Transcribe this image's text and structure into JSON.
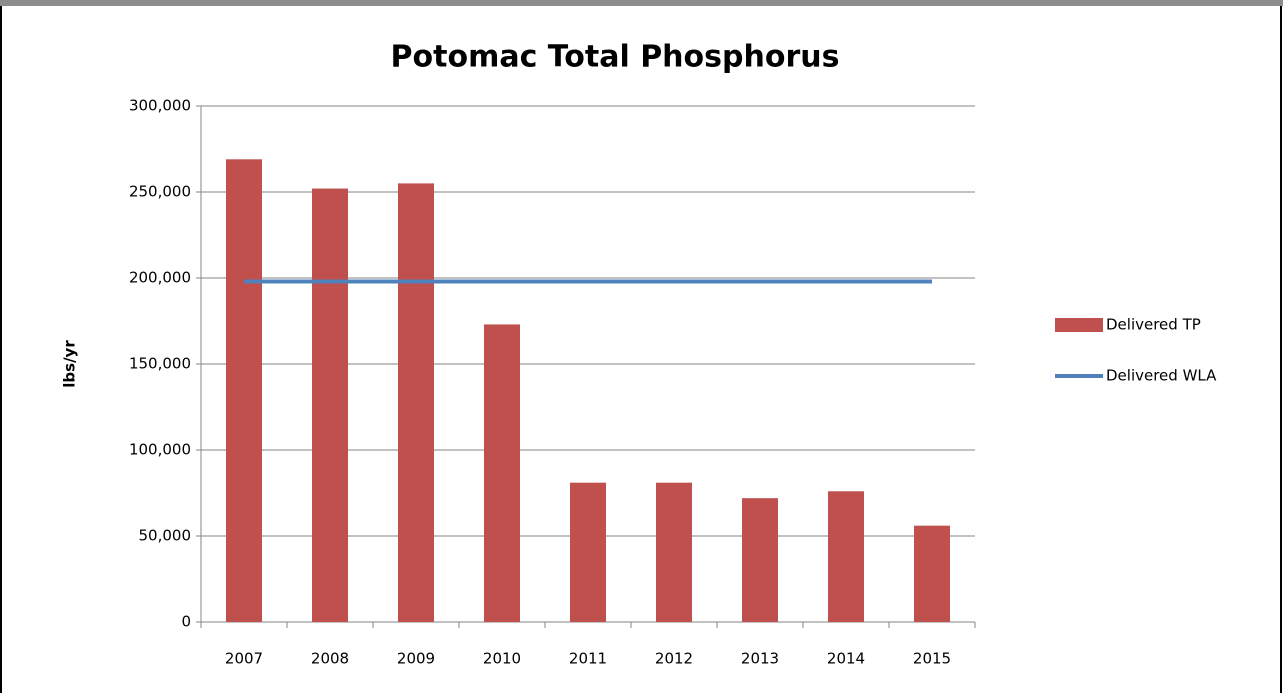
{
  "chart_data": {
    "type": "bar",
    "title": "Potomac Total Phosphorus",
    "y_label": "lbs/yr",
    "categories": [
      "2007",
      "2008",
      "2009",
      "2010",
      "2011",
      "2012",
      "2013",
      "2014",
      "2015"
    ],
    "series": [
      {
        "name": "Delivered TP",
        "type": "bar",
        "color": "#c0504d",
        "values": [
          269000,
          252000,
          255000,
          173000,
          81000,
          81000,
          72000,
          76000,
          56000
        ]
      },
      {
        "name": "Delivered WLA",
        "type": "line",
        "color": "#4f81bd",
        "values": [
          198000,
          198000,
          198000,
          198000,
          198000,
          198000,
          198000,
          198000,
          198000
        ]
      }
    ],
    "ylim": [
      0,
      300000
    ],
    "yticks": [
      0,
      {
        "value": 50000,
        "label": "50,000"
      },
      {
        "value": 100000,
        "label": "100,000"
      },
      {
        "value": 150000,
        "label": "150,000"
      },
      {
        "value": 200000,
        "label": "200,000"
      },
      {
        "value": 250000,
        "label": "250,000"
      },
      {
        "value": 300000,
        "label": "300,000"
      }
    ],
    "grid": true,
    "legend": "right"
  }
}
